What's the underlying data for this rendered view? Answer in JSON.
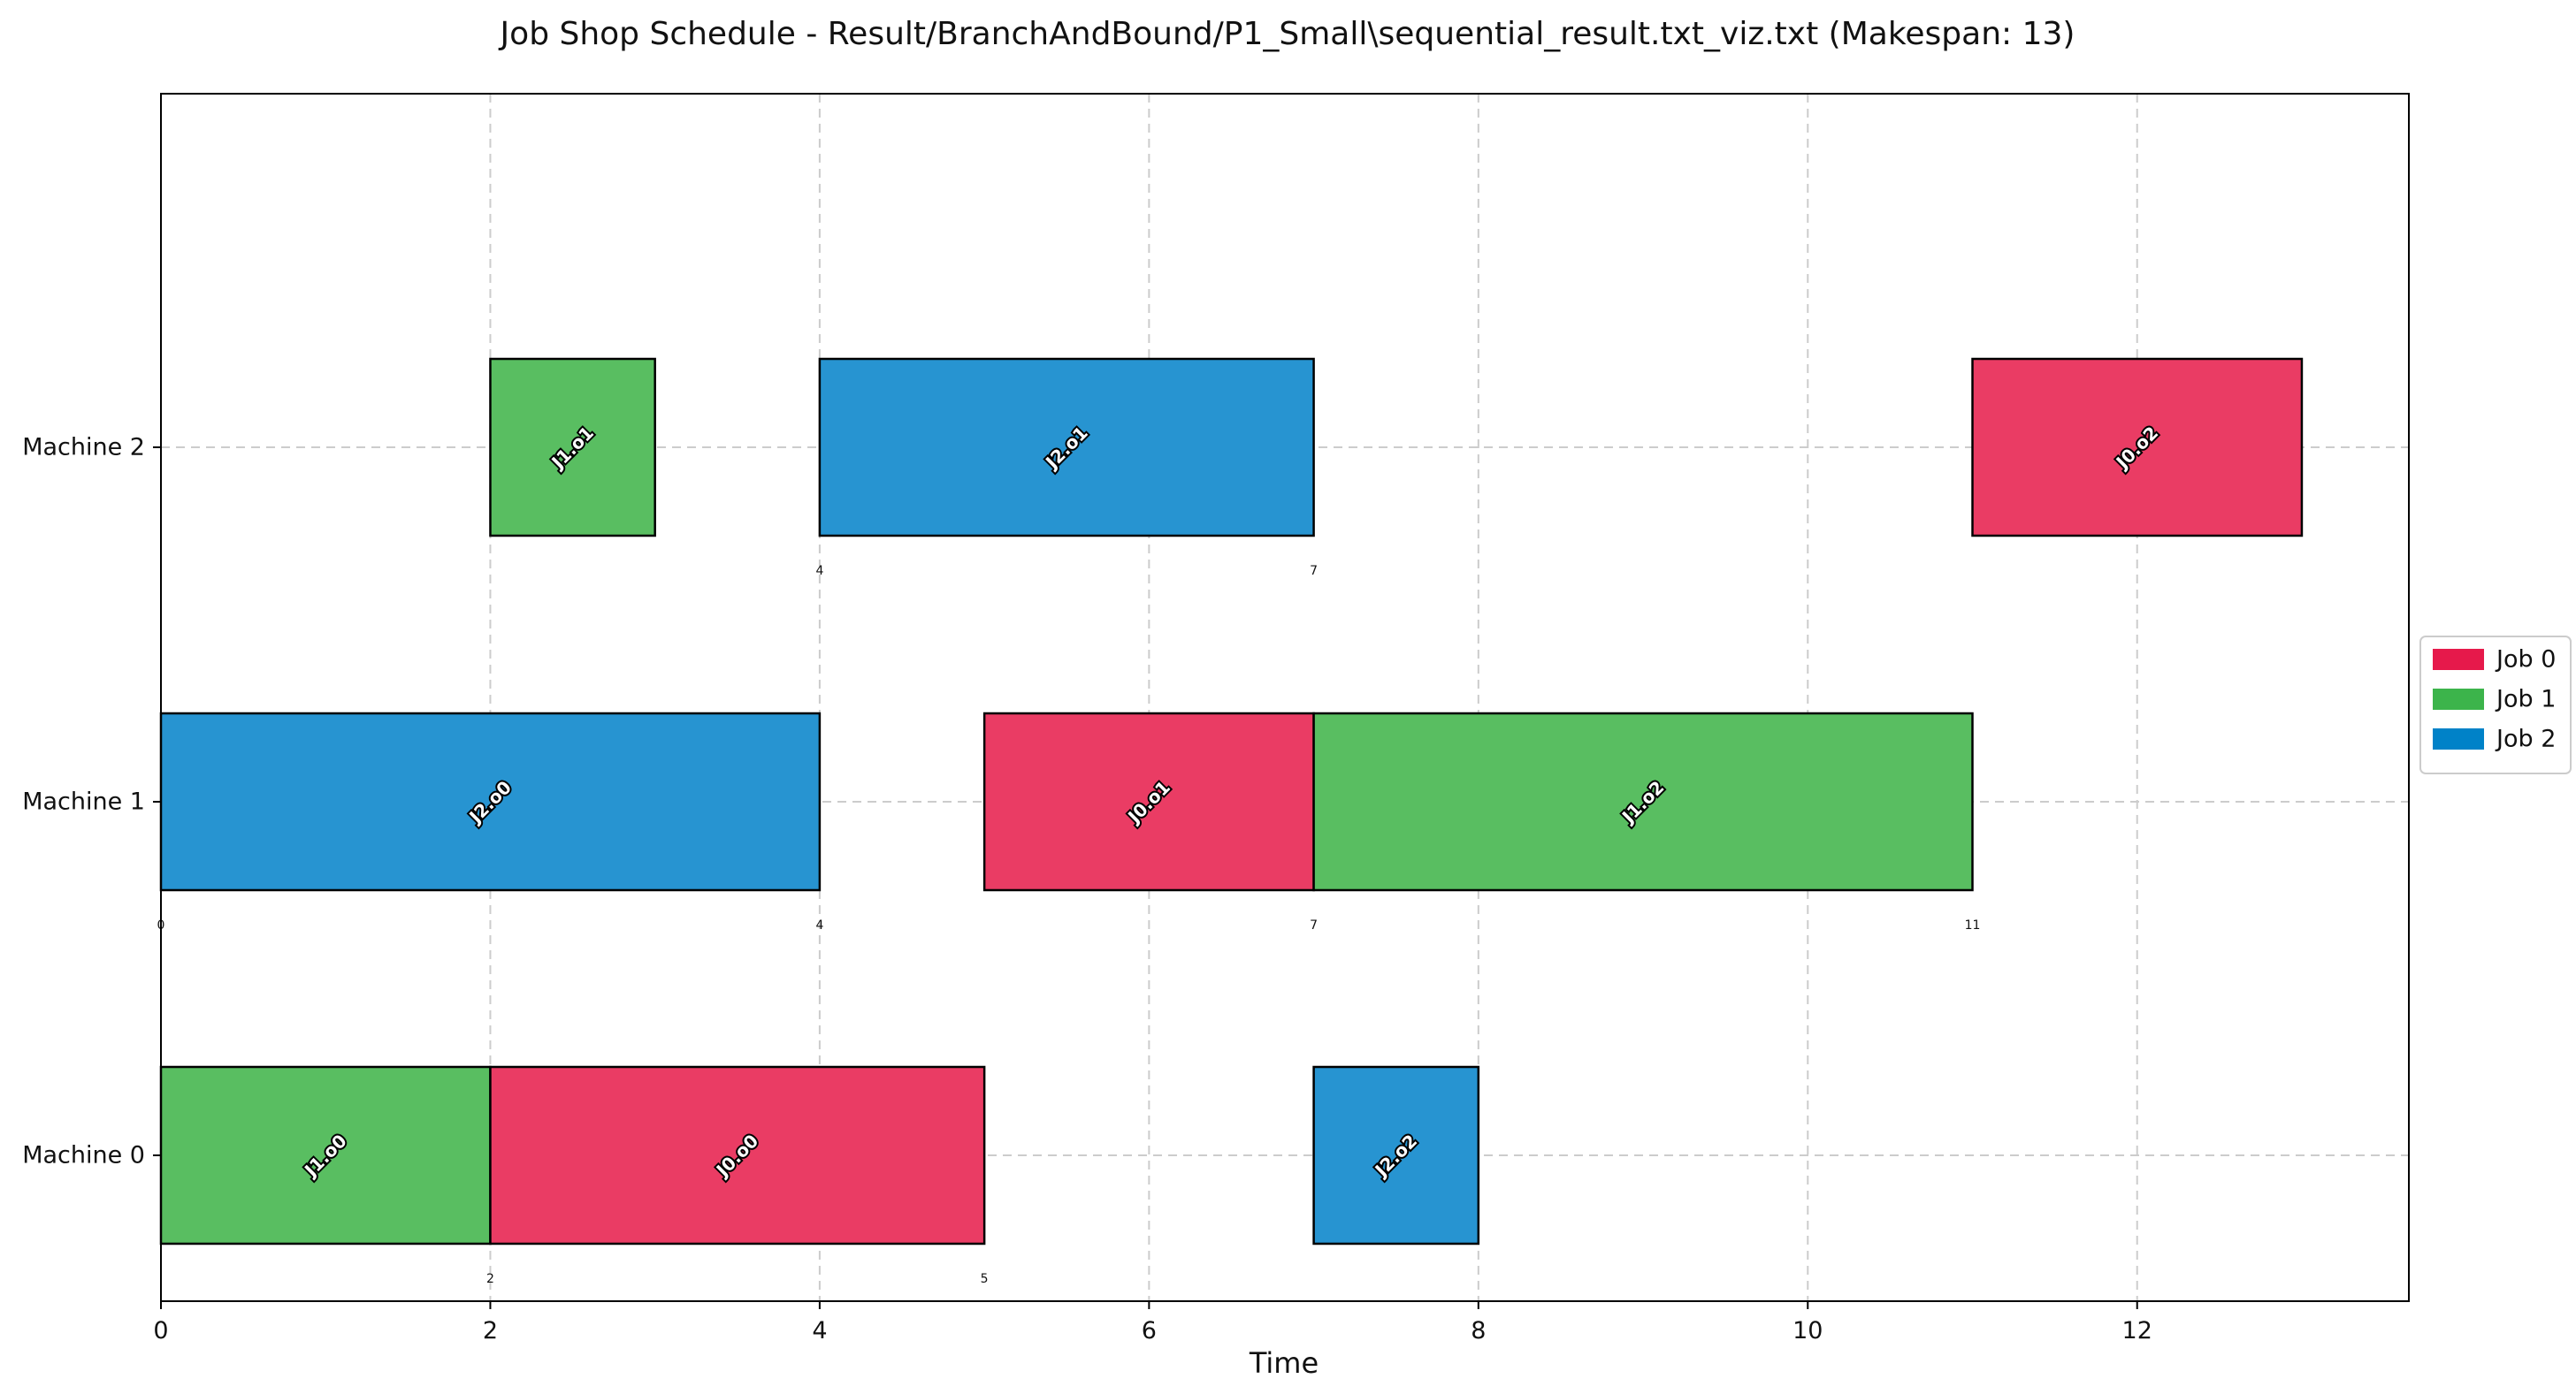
{
  "chart_data": {
    "type": "gantt",
    "title": "Job Shop Schedule - Result/BranchAndBound/P1_Small\\sequential_result.txt_viz.txt (Makespan: 13)",
    "xlabel": "Time",
    "ylabel": "",
    "xlim": [
      0,
      13.65
    ],
    "xticks": [
      0,
      2,
      4,
      6,
      8,
      10,
      12
    ],
    "grid": true,
    "legend_position": "right",
    "machines": [
      "Machine 0",
      "Machine 1",
      "Machine 2"
    ],
    "jobs": [
      {
        "name": "Job 0",
        "color": "#e6194b",
        "bar_color": "#ea3c64"
      },
      {
        "name": "Job 1",
        "color": "#3cb44b",
        "bar_color": "#59be61"
      },
      {
        "name": "Job 2",
        "color": "#0082c8",
        "bar_color": "#2794d1"
      }
    ],
    "operations": [
      {
        "machine": 0,
        "job": 1,
        "label": "J1.o0",
        "start": 0,
        "end": 2
      },
      {
        "machine": 0,
        "job": 0,
        "label": "J0.o0",
        "start": 2,
        "end": 5
      },
      {
        "machine": 0,
        "job": 2,
        "label": "J2.o2",
        "start": 7,
        "end": 8
      },
      {
        "machine": 1,
        "job": 2,
        "label": "J2.o0",
        "start": 0,
        "end": 4
      },
      {
        "machine": 1,
        "job": 0,
        "label": "J0.o1",
        "start": 5,
        "end": 7
      },
      {
        "machine": 1,
        "job": 1,
        "label": "J1.o2",
        "start": 7,
        "end": 11
      },
      {
        "machine": 2,
        "job": 1,
        "label": "J1.o1",
        "start": 2,
        "end": 3
      },
      {
        "machine": 2,
        "job": 2,
        "label": "J2.o1",
        "start": 4,
        "end": 7
      },
      {
        "machine": 2,
        "job": 0,
        "label": "J0.o2",
        "start": 11,
        "end": 13
      }
    ],
    "edge_labels": [
      {
        "machine": 0,
        "values": [
          "2",
          "5"
        ]
      },
      {
        "machine": 1,
        "values": [
          "0",
          "4",
          "7",
          "11"
        ]
      },
      {
        "machine": 2,
        "values": [
          "4",
          "7"
        ]
      }
    ]
  }
}
